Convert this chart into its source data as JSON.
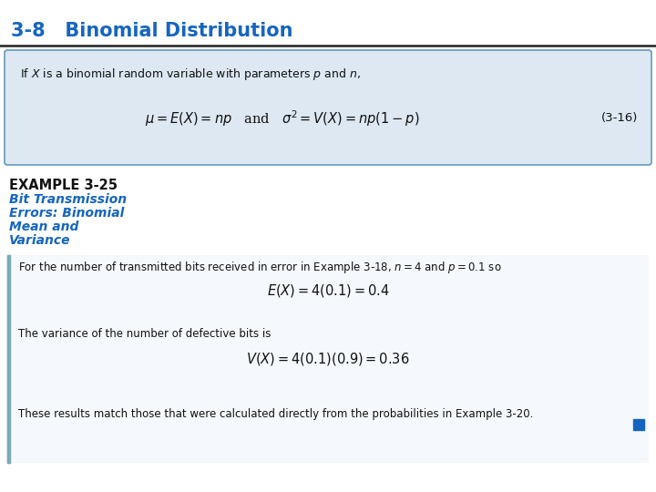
{
  "title": "3-8   Binomial Distribution",
  "title_color": "#1565C0",
  "title_fontsize": 15,
  "bg_color": "#FFFFFF",
  "box_bg": "#DDE8F3",
  "box_border": "#6699BB",
  "box_text_intro": "If $X$ is a binomial random variable with parameters $p$ and $n$,",
  "box_formula": "$\\mu = E(X) = np$   and   $\\sigma^2 = V(X) = np(1 - p)$",
  "box_label": "(3-16)",
  "example_title": "EXAMPLE 3-25",
  "example_subtitle": [
    "Bit Transmission",
    "Errors: Binomial",
    "Mean and",
    "Variance"
  ],
  "example_subtitle_color": "#1565C0",
  "body_text1": "For the number of transmitted bits received in error in Example 3-18, $n = 4$ and $p = 0.1$ so",
  "formula1": "$E(X) = 4(0.1) = 0.4$",
  "body_text2": "The variance of the number of defective bits is",
  "formula2": "$V(X) = 4(0.1)(0.9) = 0.36$",
  "footer_text": "These results match those that were calculated directly from the probabilities in Example 3-20.",
  "footer_square_color": "#1565C0",
  "left_bar_color": "#7AAABB",
  "line_color": "#222222"
}
